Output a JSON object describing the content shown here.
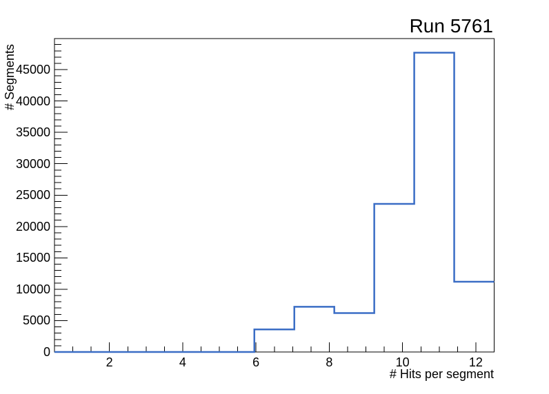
{
  "chart_data": {
    "type": "bar",
    "style": "step-histogram-outline",
    "title": "Run 5761",
    "xlabel": "# Hits per segment",
    "ylabel": "# Segments",
    "xlim": [
      0.5,
      12.5
    ],
    "ylim": [
      0,
      49950
    ],
    "grid": false,
    "legend": null,
    "bin_edges": [
      0.5,
      1.5909,
      2.6818,
      3.7727,
      4.8636,
      5.9545,
      7.0455,
      8.1364,
      9.2273,
      10.3182,
      11.4091,
      12.5
    ],
    "values": [
      0,
      0,
      0,
      0,
      0,
      3600,
      7200,
      6200,
      23600,
      47700,
      11200
    ],
    "x_major_ticks": [
      2,
      4,
      6,
      8,
      10,
      12
    ],
    "x_major_tick_labels": [
      "2",
      "4",
      "6",
      "8",
      "10",
      "12"
    ],
    "x_minor_tick_step": 0.5,
    "y_major_ticks": [
      0,
      5000,
      10000,
      15000,
      20000,
      25000,
      30000,
      35000,
      40000,
      45000
    ],
    "y_major_tick_labels": [
      "0",
      "5000",
      "10000",
      "15000",
      "20000",
      "25000",
      "30000",
      "35000",
      "40000",
      "45000"
    ],
    "y_minor_tick_step": 1000,
    "line_color": "#3a6dc5",
    "axis_color": "#000000",
    "text_color": "#000000",
    "background_color": "#ffffff"
  }
}
